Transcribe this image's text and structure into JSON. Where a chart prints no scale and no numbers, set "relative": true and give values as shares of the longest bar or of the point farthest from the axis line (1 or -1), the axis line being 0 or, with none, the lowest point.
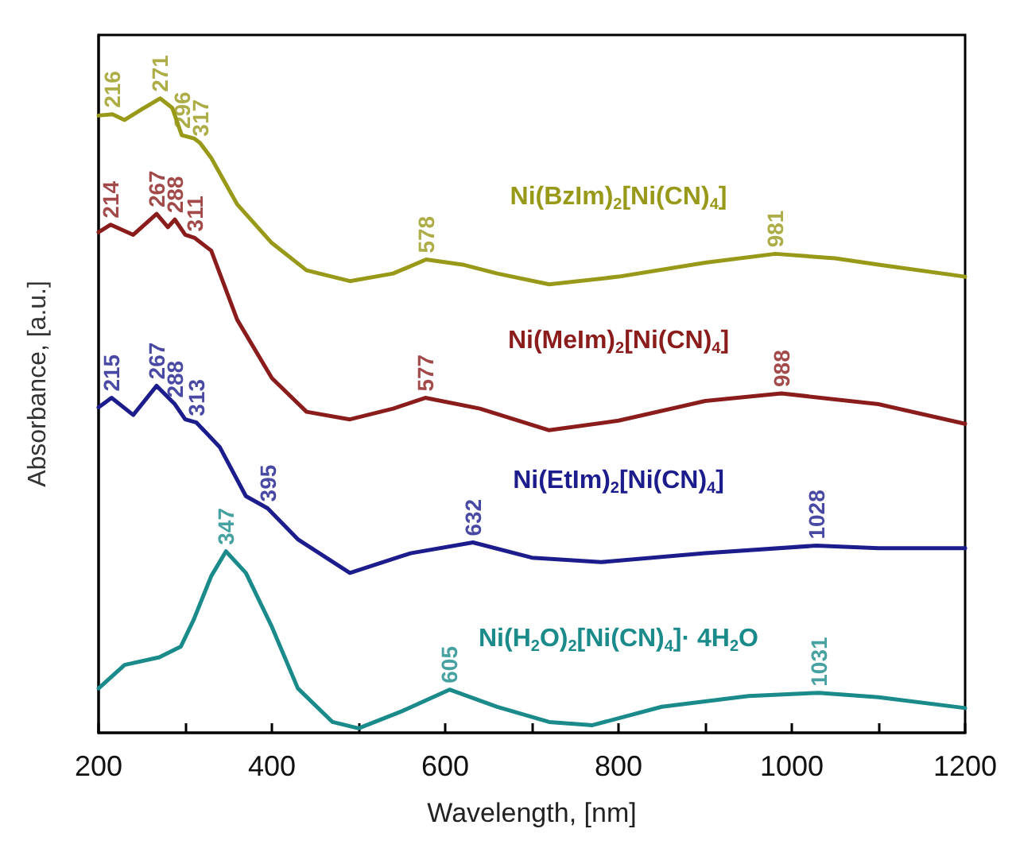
{
  "chart_data": {
    "type": "line",
    "relative": true,
    "marker": "none",
    "xlabel": "Wavelength, [nm]",
    "ylabel": "Absorbance, [a.u.]",
    "xlim": [
      200,
      1200
    ],
    "xticks": [
      200,
      {
        "value": 300,
        "label": null
      },
      400,
      {
        "value": 500,
        "label": null
      },
      600,
      {
        "value": 700,
        "label": null
      },
      800,
      {
        "value": 900,
        "label": null
      },
      1000,
      {
        "value": 1100,
        "label": null
      },
      1200
    ],
    "series": [
      {
        "name": "Ni(BzIm)$_{2}$[Ni(CN)$_{4}$]",
        "color": "#999919",
        "x": [
          200,
          216,
          230,
          250,
          271,
          285,
          296,
          310,
          317,
          330,
          360,
          400,
          440,
          490,
          540,
          578,
          620,
          660,
          720,
          800,
          900,
          981,
          1050,
          1100,
          1200
        ],
        "values": [
          0.973,
          0.975,
          0.966,
          0.983,
          1.0,
          0.985,
          0.942,
          0.937,
          0.93,
          0.906,
          0.833,
          0.772,
          0.729,
          0.712,
          0.724,
          0.746,
          0.738,
          0.724,
          0.707,
          0.719,
          0.741,
          0.755,
          0.748,
          0.738,
          0.719
        ]
      },
      {
        "name": "Ni(MeIm)$_{2}$[Ni(CN)$_{4}$]",
        "color": "#8b1c1c",
        "x": [
          200,
          214,
          240,
          267,
          280,
          288,
          300,
          311,
          330,
          360,
          400,
          440,
          490,
          540,
          577,
          640,
          720,
          800,
          900,
          988,
          1100,
          1200
        ],
        "values": [
          0.789,
          0.801,
          0.785,
          0.818,
          0.797,
          0.809,
          0.785,
          0.78,
          0.76,
          0.651,
          0.559,
          0.506,
          0.494,
          0.511,
          0.528,
          0.511,
          0.477,
          0.492,
          0.523,
          0.535,
          0.518,
          0.487
        ]
      },
      {
        "name": "Ni(EtIm)$_{2}$[Ni(CN)$_{4}$]",
        "color": "#1c1c8c",
        "x": [
          200,
          215,
          240,
          267,
          288,
          300,
          313,
          340,
          370,
          395,
          430,
          490,
          560,
          632,
          700,
          780,
          900,
          1028,
          1100,
          1200
        ],
        "values": [
          0.513,
          0.528,
          0.501,
          0.547,
          0.518,
          0.494,
          0.489,
          0.45,
          0.373,
          0.354,
          0.305,
          0.252,
          0.283,
          0.3,
          0.276,
          0.269,
          0.283,
          0.295,
          0.291,
          0.291
        ]
      },
      {
        "name": "Ni(H$_{2}$O)$_{2}$[Ni(CN)$_{4}$]· 4H$_{2}$O",
        "color": "#1a8a8a",
        "x": [
          200,
          230,
          270,
          295,
          310,
          330,
          347,
          370,
          400,
          430,
          470,
          500,
          550,
          605,
          660,
          720,
          770,
          850,
          950,
          1031,
          1100,
          1200
        ],
        "values": [
          0.07,
          0.107,
          0.119,
          0.136,
          0.179,
          0.247,
          0.286,
          0.252,
          0.167,
          0.07,
          0.017,
          0.007,
          0.034,
          0.068,
          0.041,
          0.017,
          0.012,
          0.041,
          0.058,
          0.063,
          0.056,
          0.039
        ]
      }
    ],
    "annotations": [
      {
        "text": "216",
        "x": 216,
        "y": 0.975
      },
      {
        "text": "271",
        "x": 271,
        "y": 1.0
      },
      {
        "text": "296",
        "x": 296,
        "y": 0.942
      },
      {
        "text": "317",
        "x": 317,
        "y": 0.93
      },
      {
        "text": "578",
        "x": 578,
        "y": 0.746
      },
      {
        "text": "981",
        "x": 981,
        "y": 0.755
      },
      {
        "text": "214",
        "x": 214,
        "y": 0.801
      },
      {
        "text": "267",
        "x": 267,
        "y": 0.818
      },
      {
        "text": "288",
        "x": 288,
        "y": 0.809
      },
      {
        "text": "311",
        "x": 311,
        "y": 0.78
      },
      {
        "text": "577",
        "x": 577,
        "y": 0.528
      },
      {
        "text": "988",
        "x": 988,
        "y": 0.535
      },
      {
        "text": "215",
        "x": 215,
        "y": 0.528
      },
      {
        "text": "267",
        "x": 267,
        "y": 0.547
      },
      {
        "text": "288",
        "x": 288,
        "y": 0.518
      },
      {
        "text": "313",
        "x": 313,
        "y": 0.489
      },
      {
        "text": "395",
        "x": 395,
        "y": 0.354
      },
      {
        "text": "632",
        "x": 632,
        "y": 0.3
      },
      {
        "text": "1028",
        "x": 1028,
        "y": 0.295
      },
      {
        "text": "347",
        "x": 347,
        "y": 0.286
      },
      {
        "text": "605",
        "x": 605,
        "y": 0.068
      },
      {
        "text": "1031",
        "x": 1031,
        "y": 0.063
      }
    ]
  }
}
